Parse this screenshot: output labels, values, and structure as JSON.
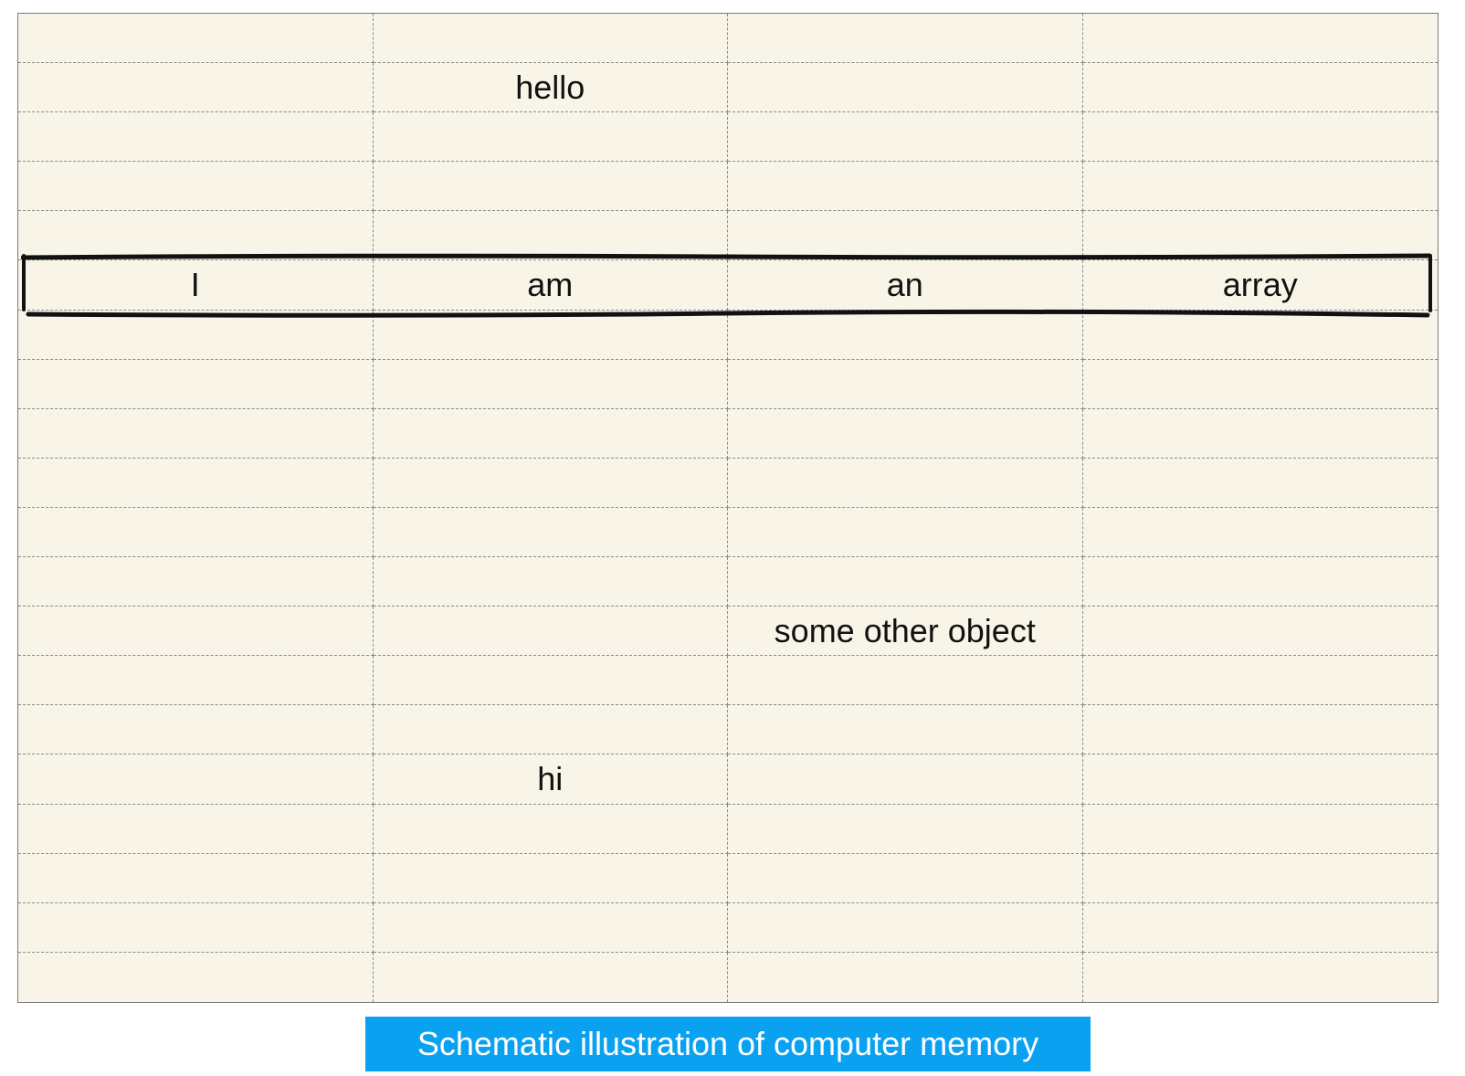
{
  "memory_grid": {
    "columns": 4,
    "rows": 20,
    "cells": [
      {
        "row": 1,
        "col": 1,
        "text": "hello"
      },
      {
        "row": 5,
        "col": 0,
        "text": "I"
      },
      {
        "row": 5,
        "col": 1,
        "text": "am"
      },
      {
        "row": 5,
        "col": 2,
        "text": "an"
      },
      {
        "row": 5,
        "col": 3,
        "text": "array"
      },
      {
        "row": 12,
        "col": 2,
        "text": "some other object"
      },
      {
        "row": 15,
        "col": 1,
        "text": "hi"
      }
    ],
    "highlighted_row": 5
  },
  "caption": {
    "text": "Schematic illustration of computer memory"
  },
  "colors": {
    "grid_background": "#f8f4e8",
    "grid_line": "#8a8a8a",
    "array_outline": "#111111",
    "caption_background": "#0aa2f0",
    "caption_text": "#ffffff"
  }
}
